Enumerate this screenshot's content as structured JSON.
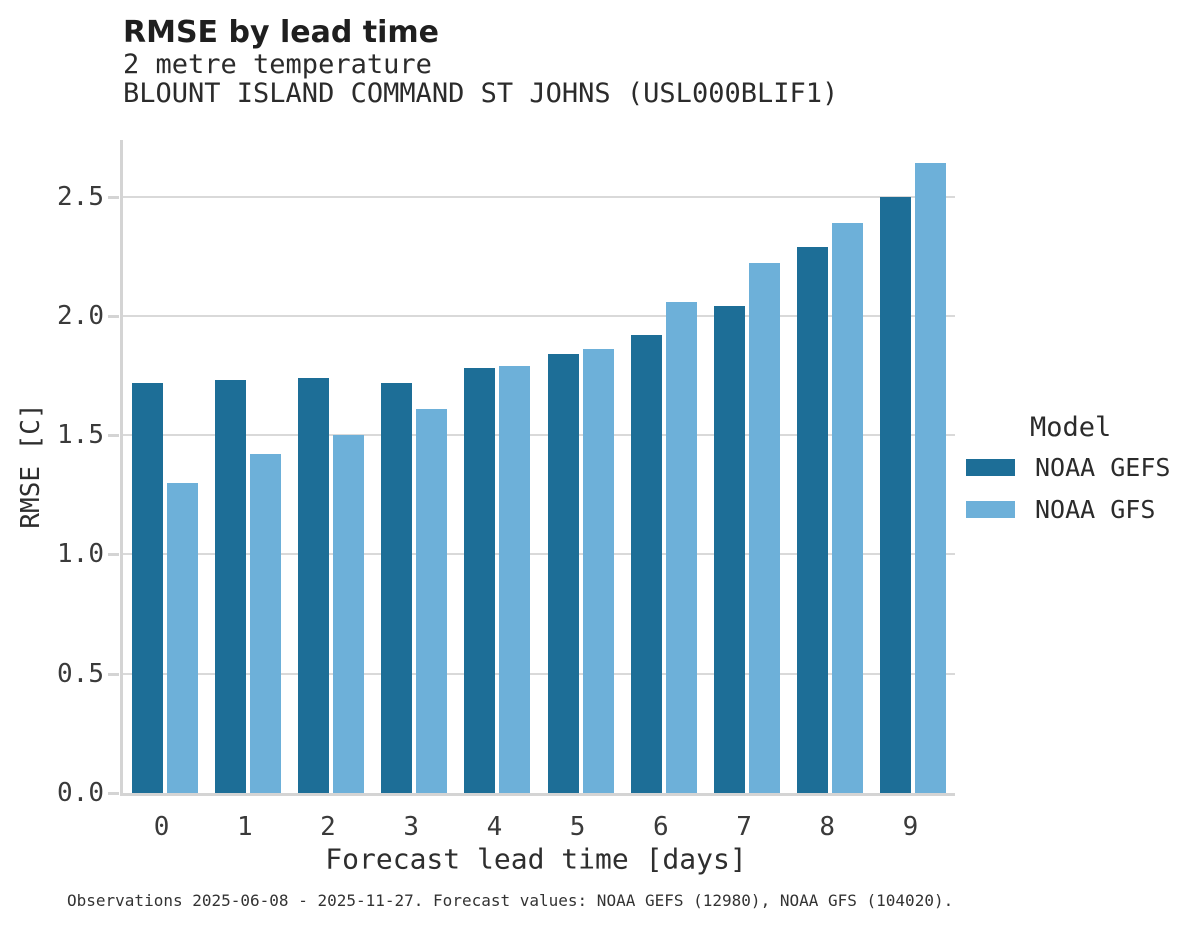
{
  "header": {
    "title": "RMSE by lead time",
    "subtitle1": "2 metre temperature",
    "subtitle2": "BLOUNT ISLAND COMMAND ST JOHNS (USL000BLIF1)"
  },
  "footer": "Observations 2025-06-08 - 2025-11-27. Forecast values: NOAA GEFS (12980), NOAA GFS (104020).",
  "legend": {
    "title": "Model",
    "items": [
      {
        "label": "NOAA GEFS",
        "color": "#1d6e97"
      },
      {
        "label": "NOAA GFS",
        "color": "#6db0d9"
      }
    ]
  },
  "colors": {
    "noaa_gefs": "#1d6e97",
    "noaa_gfs": "#6db0d9",
    "gridline": "#d9d9d9",
    "spine": "#d4d4d4"
  },
  "chart_data": {
    "type": "bar",
    "title": "RMSE by lead time",
    "subtitle": "2 metre temperature — BLOUNT ISLAND COMMAND ST JOHNS (USL000BLIF1)",
    "xlabel": "Forecast lead time [days]",
    "ylabel": "RMSE [C]",
    "categories": [
      "0",
      "1",
      "2",
      "3",
      "4",
      "5",
      "6",
      "7",
      "8",
      "9"
    ],
    "series": [
      {
        "name": "NOAA GEFS",
        "color": "#1d6e97",
        "values": [
          1.72,
          1.73,
          1.74,
          1.72,
          1.78,
          1.84,
          1.92,
          2.04,
          2.29,
          2.5
        ]
      },
      {
        "name": "NOAA GFS",
        "color": "#6db0d9",
        "values": [
          1.3,
          1.42,
          1.5,
          1.61,
          1.79,
          1.86,
          2.06,
          2.22,
          2.39,
          2.64
        ]
      }
    ],
    "yticks": [
      0.0,
      0.5,
      1.0,
      1.5,
      2.0,
      2.5
    ],
    "ytick_labels": [
      "0.0",
      "0.5",
      "1.0",
      "1.5",
      "2.0",
      "2.5"
    ],
    "ylim": [
      0,
      2.737
    ],
    "grid": true,
    "legend_position": "right"
  }
}
